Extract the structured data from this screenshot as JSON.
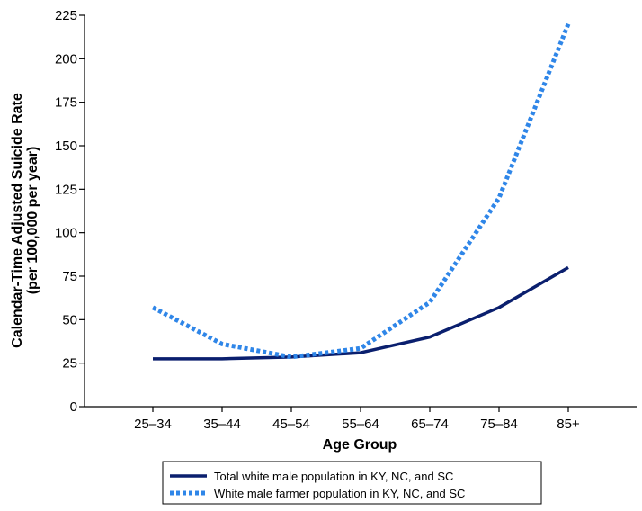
{
  "chart_data": {
    "type": "line",
    "categories": [
      "25–34",
      "35–44",
      "45–54",
      "55–64",
      "65–74",
      "75–84",
      "85+"
    ],
    "series": [
      {
        "name": "Total white male population in KY, NC, and SC",
        "values": [
          27.5,
          27.5,
          28.5,
          31,
          40,
          57,
          80
        ],
        "color": "#0a1f6e",
        "style": "solid"
      },
      {
        "name": "White male farmer population in KY, NC, and SC",
        "values": [
          57,
          36,
          28.5,
          33.5,
          60,
          120,
          220
        ],
        "color": "#2f86e8",
        "style": "dotted"
      }
    ],
    "yticks": [
      0,
      25,
      50,
      75,
      100,
      125,
      150,
      175,
      200,
      225
    ],
    "ylim": [
      0,
      225
    ],
    "xlabel": "Age Group",
    "ylabel_lines": [
      "Calendar-Time Adjusted Suicide Rate",
      "(per 100,000 per year)"
    ],
    "legend_position": "bottom-center",
    "grid": false
  }
}
